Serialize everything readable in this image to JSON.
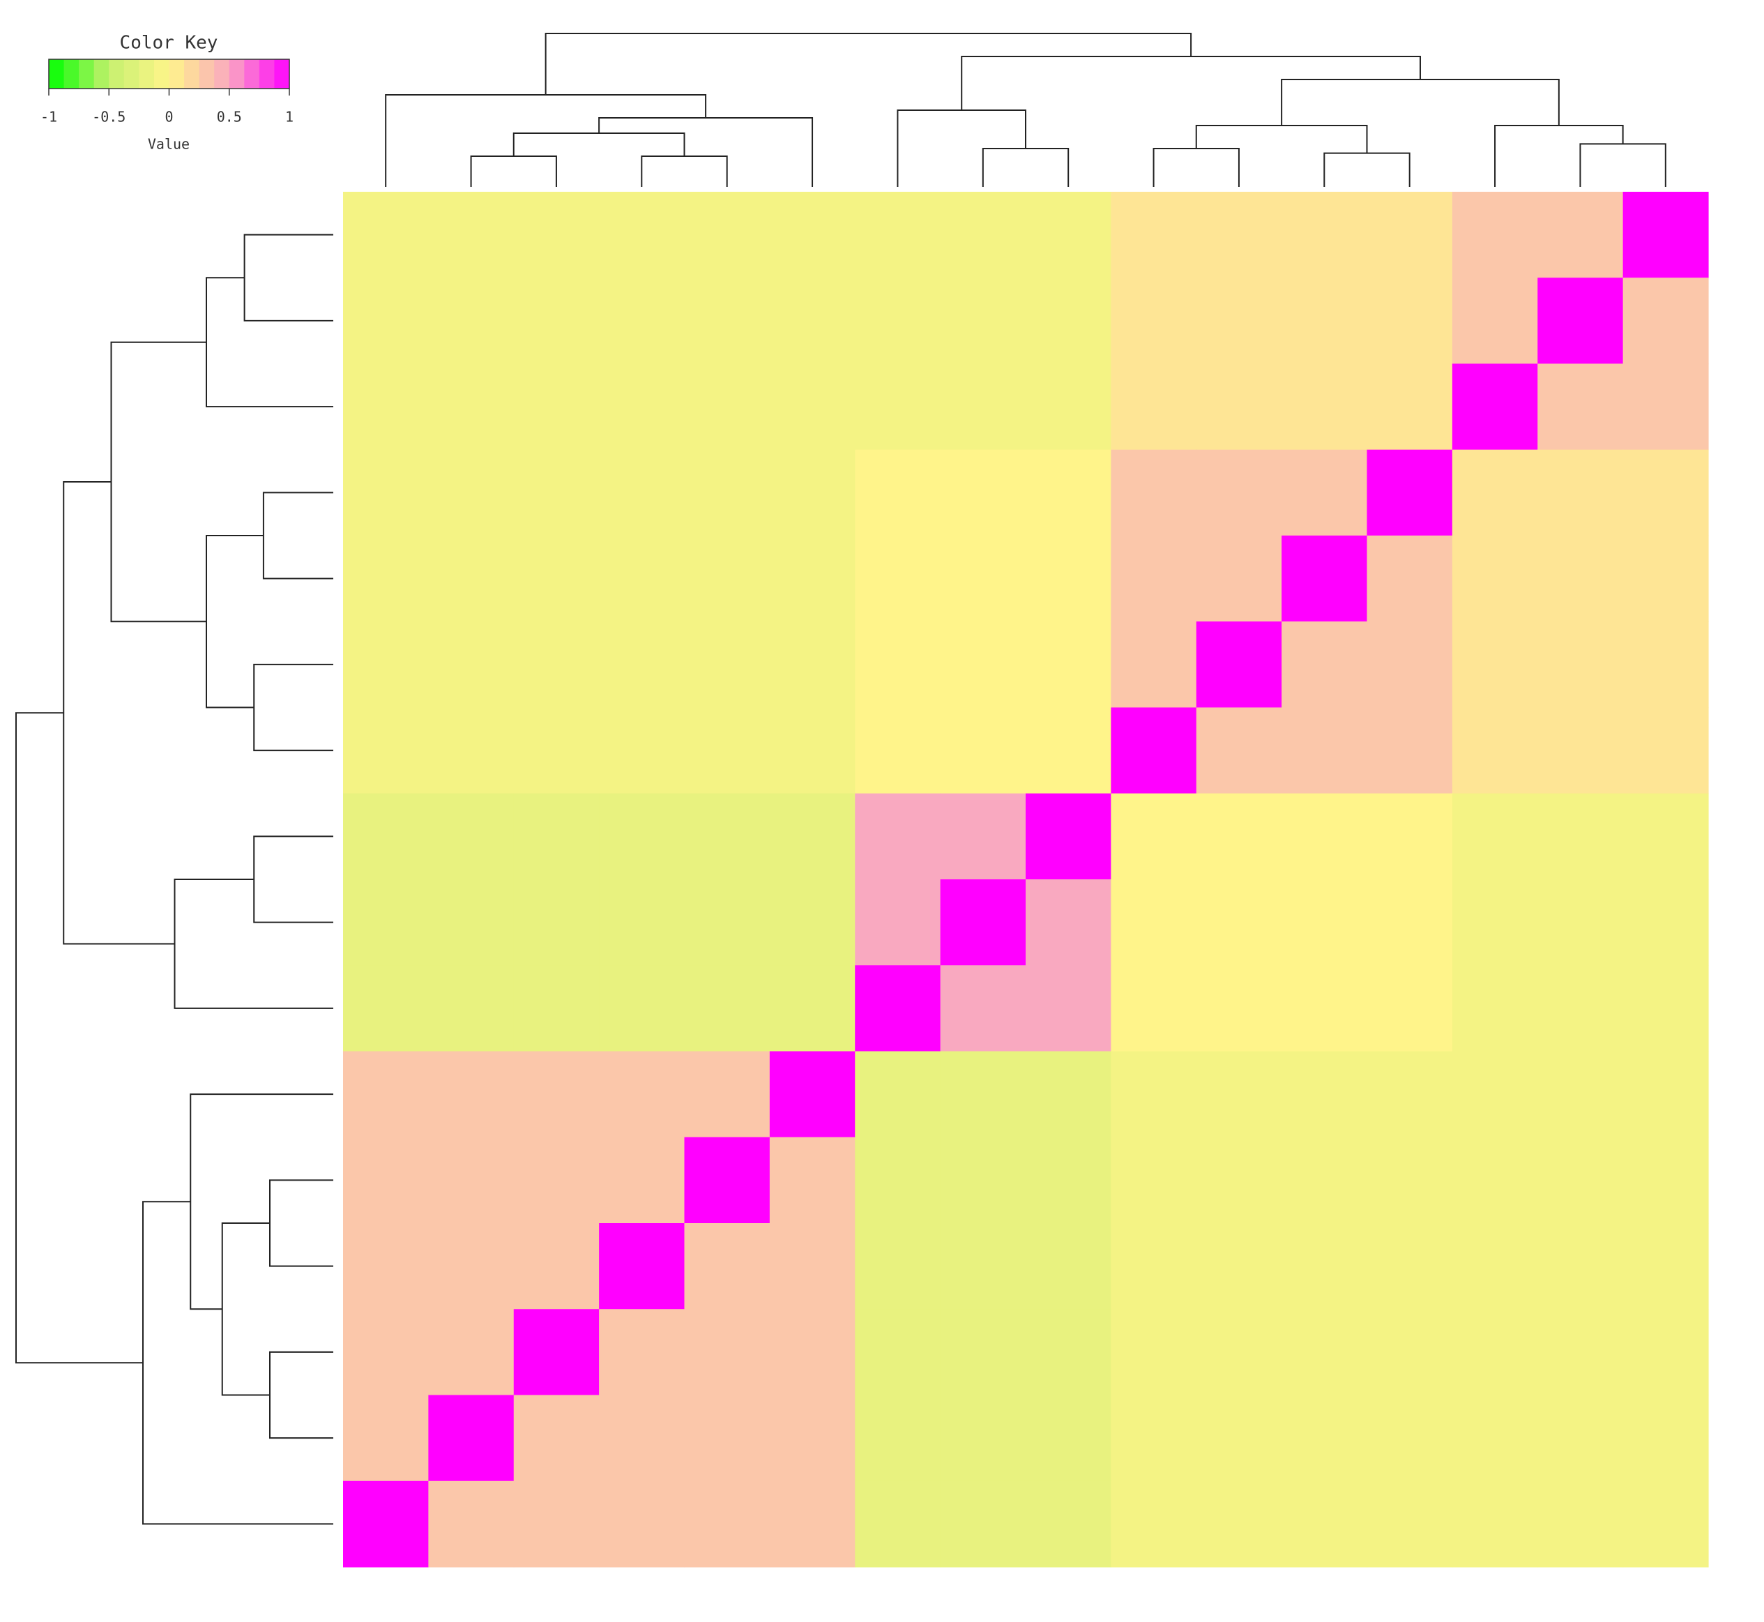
{
  "chart_data": {
    "type": "heatmap",
    "key_title": "Color Key",
    "key_label": "Value",
    "zlim": [
      -1,
      1
    ],
    "zticks": [
      -1,
      -0.5,
      0,
      0.5,
      1
    ],
    "colorscale": [
      "#00ff00",
      "#c6f06e",
      "#fff48a",
      "#f9a9c0",
      "#ff00ff"
    ],
    "key_bins": 16,
    "values": [
      [
        -0.1,
        -0.1,
        -0.1,
        -0.1,
        -0.1,
        -0.1,
        -0.1,
        -0.1,
        -0.1,
        0.1,
        0.1,
        0.1,
        0.1,
        0.3,
        0.3,
        1
      ],
      [
        -0.1,
        -0.1,
        -0.1,
        -0.1,
        -0.1,
        -0.1,
        -0.1,
        -0.1,
        -0.1,
        0.1,
        0.1,
        0.1,
        0.1,
        0.3,
        1,
        0.3
      ],
      [
        -0.1,
        -0.1,
        -0.1,
        -0.1,
        -0.1,
        -0.1,
        -0.1,
        -0.1,
        -0.1,
        0.1,
        0.1,
        0.1,
        0.1,
        1,
        0.3,
        0.3
      ],
      [
        -0.1,
        -0.1,
        -0.1,
        -0.1,
        -0.1,
        -0.1,
        0,
        0,
        0,
        0.3,
        0.3,
        0.3,
        1,
        0.1,
        0.1,
        0.1
      ],
      [
        -0.1,
        -0.1,
        -0.1,
        -0.1,
        -0.1,
        -0.1,
        0,
        0,
        0,
        0.3,
        0.3,
        1,
        0.3,
        0.1,
        0.1,
        0.1
      ],
      [
        -0.1,
        -0.1,
        -0.1,
        -0.1,
        -0.1,
        -0.1,
        0,
        0,
        0,
        0.3,
        1,
        0.3,
        0.3,
        0.1,
        0.1,
        0.1
      ],
      [
        -0.1,
        -0.1,
        -0.1,
        -0.1,
        -0.1,
        -0.1,
        0,
        0,
        0,
        1,
        0.3,
        0.3,
        0.3,
        0.1,
        0.1,
        0.1
      ],
      [
        -0.2,
        -0.2,
        -0.2,
        -0.2,
        -0.2,
        -0.2,
        0.5,
        0.5,
        1,
        0,
        0,
        0,
        0,
        -0.1,
        -0.1,
        -0.1
      ],
      [
        -0.2,
        -0.2,
        -0.2,
        -0.2,
        -0.2,
        -0.2,
        0.5,
        1,
        0.5,
        0,
        0,
        0,
        0,
        -0.1,
        -0.1,
        -0.1
      ],
      [
        -0.2,
        -0.2,
        -0.2,
        -0.2,
        -0.2,
        -0.2,
        1,
        0.5,
        0.5,
        0,
        0,
        0,
        0,
        -0.1,
        -0.1,
        -0.1
      ],
      [
        0.3,
        0.3,
        0.3,
        0.3,
        0.3,
        1,
        -0.2,
        -0.2,
        -0.2,
        -0.1,
        -0.1,
        -0.1,
        -0.1,
        -0.1,
        -0.1,
        -0.1
      ],
      [
        0.3,
        0.3,
        0.3,
        0.3,
        1,
        0.3,
        -0.2,
        -0.2,
        -0.2,
        -0.1,
        -0.1,
        -0.1,
        -0.1,
        -0.1,
        -0.1,
        -0.1
      ],
      [
        0.3,
        0.3,
        0.3,
        1,
        0.3,
        0.3,
        -0.2,
        -0.2,
        -0.2,
        -0.1,
        -0.1,
        -0.1,
        -0.1,
        -0.1,
        -0.1,
        -0.1
      ],
      [
        0.3,
        0.3,
        1,
        0.3,
        0.3,
        0.3,
        -0.2,
        -0.2,
        -0.2,
        -0.1,
        -0.1,
        -0.1,
        -0.1,
        -0.1,
        -0.1,
        -0.1
      ],
      [
        0.3,
        1,
        0.3,
        0.3,
        0.3,
        0.3,
        -0.2,
        -0.2,
        -0.2,
        -0.1,
        -0.1,
        -0.1,
        -0.1,
        -0.1,
        -0.1,
        -0.1
      ],
      [
        1,
        0.3,
        0.3,
        0.3,
        0.3,
        0.3,
        -0.2,
        -0.2,
        -0.2,
        -0.1,
        -0.1,
        -0.1,
        -0.1,
        -0.1,
        -0.1,
        -0.1
      ]
    ]
  }
}
